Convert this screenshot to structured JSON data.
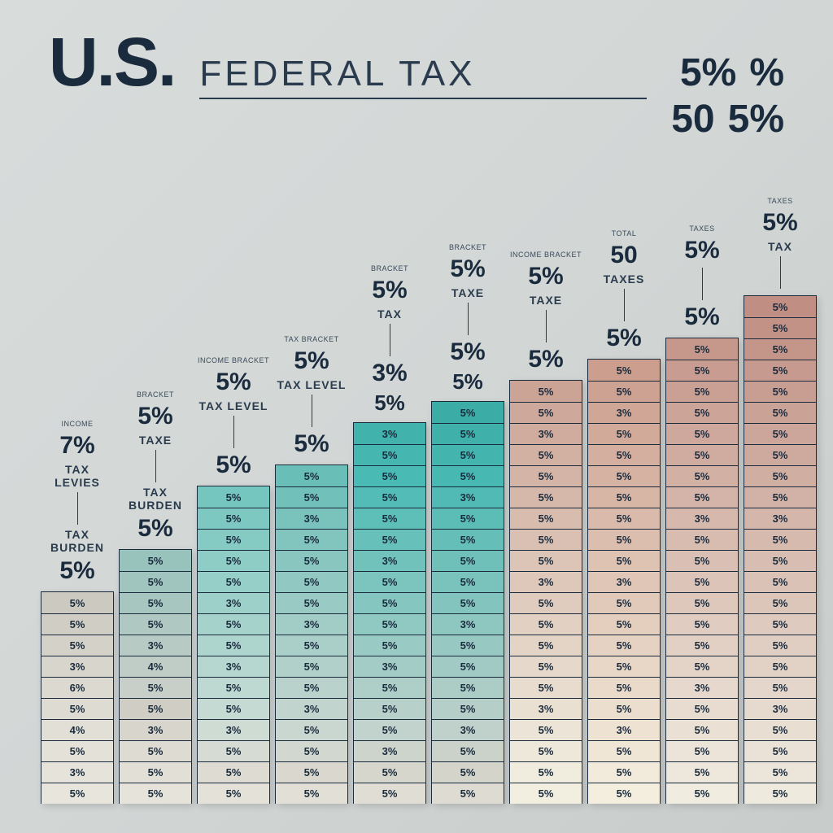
{
  "header": {
    "us": "U.S.",
    "title": "FEDERAL TAX",
    "right1": "5%",
    "right2": "%",
    "right3": "50",
    "right4": "5%"
  },
  "chart": {
    "type": "stacked-bar",
    "background_color": "#d4d8d6",
    "text_color": "#1a2b3d",
    "seg_height": 26,
    "col_gap": 6,
    "columns": [
      {
        "top_tiny": "INCOME",
        "top_pct": "7%",
        "top_sub": "TAX LEVIES",
        "mid_sub": "TAX BURDEN",
        "mid_pct": "5%",
        "segs": 10,
        "colors": [
          "#e8e6dc",
          "#e6e4da",
          "#e4e2d8",
          "#e2e0d6",
          "#dedcd2",
          "#dcdad0",
          "#d8d6cc",
          "#d4d2c8",
          "#d0cec4",
          "#cccac0"
        ],
        "labels": [
          "5%",
          "3%",
          "5%",
          "4%",
          "5%",
          "6%",
          "3%",
          "5%",
          "5%",
          "5%"
        ]
      },
      {
        "top_tiny": "BRACKET",
        "top_pct": "5%",
        "top_sub": "TAXE",
        "mid_sub": "TAX BURDEN",
        "mid_pct": "5%",
        "segs": 12,
        "colors": [
          "#e6e4da",
          "#e2e0d6",
          "#dedcd2",
          "#d8d6cc",
          "#d0cec4",
          "#c8cec8",
          "#c0ccc6",
          "#b8cac4",
          "#b0c8c2",
          "#a8c6c0",
          "#a0c4be",
          "#98c2bc"
        ],
        "labels": [
          "5%",
          "5%",
          "5%",
          "3%",
          "5%",
          "5%",
          "4%",
          "3%",
          "5%",
          "5%",
          "5%",
          "5%"
        ]
      },
      {
        "top_tiny": "INCOME BRACKET",
        "top_pct": "5%",
        "top_sub": "TAX LEVEL",
        "mid_pct": "5%",
        "segs": 15,
        "colors": [
          "#e4e2d8",
          "#dedcd2",
          "#d6dcd4",
          "#cedcd4",
          "#c6dad4",
          "#bed8d2",
          "#b6d6d0",
          "#aed4ce",
          "#a6d2cc",
          "#9ed0ca",
          "#96cec8",
          "#8eccc6",
          "#86cac4",
          "#7ec8c2",
          "#76c6c0"
        ],
        "labels": [
          "5%",
          "5%",
          "5%",
          "3%",
          "5%",
          "5%",
          "3%",
          "5%",
          "5%",
          "3%",
          "5%",
          "5%",
          "5%",
          "5%",
          "5%"
        ]
      },
      {
        "top_tiny": "TAX BRACKET",
        "top_pct": "5%",
        "top_sub": "TAX LEVEL",
        "mid_pct": "5%",
        "segs": 16,
        "colors": [
          "#e2e0d6",
          "#dad8ce",
          "#d2d8d0",
          "#cad6d0",
          "#c2d4ce",
          "#bad2cc",
          "#b2d0ca",
          "#aacec8",
          "#a2ccc6",
          "#9acac4",
          "#92c8c2",
          "#8ac6c0",
          "#82c4be",
          "#7ac2bc",
          "#72c0ba",
          "#6abeb8"
        ],
        "labels": [
          "5%",
          "5%",
          "5%",
          "5%",
          "3%",
          "5%",
          "5%",
          "5%",
          "3%",
          "5%",
          "5%",
          "5%",
          "5%",
          "3%",
          "5%",
          "5%"
        ]
      },
      {
        "top_tiny": "BRACKET",
        "top_pct": "5%",
        "top_sub": "TAX",
        "mid_pct": "3%",
        "mid_pct2": "5%",
        "segs": 18,
        "colors": [
          "#e0ded4",
          "#d6d6cc",
          "#ccd4cc",
          "#c2d2cc",
          "#b8d0ca",
          "#aecec8",
          "#a4ccc6",
          "#9acac4",
          "#90c8c2",
          "#86c6c0",
          "#7cc4be",
          "#72c2bc",
          "#68c0ba",
          "#5ebeb8",
          "#54bcb6",
          "#4abab4",
          "#46b6b0",
          "#42b2ac"
        ],
        "labels": [
          "5%",
          "5%",
          "3%",
          "5%",
          "5%",
          "5%",
          "3%",
          "5%",
          "5%",
          "5%",
          "5%",
          "3%",
          "5%",
          "5%",
          "5%",
          "5%",
          "5%",
          "3%"
        ]
      },
      {
        "top_tiny": "BRACKET",
        "top_pct": "5%",
        "top_sub": "TAXE",
        "mid_pct": "5%",
        "mid_pct2": "5%",
        "segs": 19,
        "colors": [
          "#dedcd2",
          "#d4d4ca",
          "#cad2ca",
          "#c0d0ca",
          "#b6cec8",
          "#acccc6",
          "#a2cac4",
          "#98c8c2",
          "#8ec6c0",
          "#84c4be",
          "#7ac2bc",
          "#70c0ba",
          "#66beb8",
          "#5cbcb6",
          "#52bab4",
          "#48b8b2",
          "#44b4ae",
          "#40b0aa",
          "#3caca6"
        ],
        "labels": [
          "5%",
          "5%",
          "5%",
          "3%",
          "5%",
          "5%",
          "5%",
          "5%",
          "3%",
          "5%",
          "5%",
          "5%",
          "5%",
          "5%",
          "3%",
          "5%",
          "5%",
          "5%",
          "5%"
        ]
      },
      {
        "top_tiny": "INCOME BRACKET",
        "top_pct": "5%",
        "top_sub": "TAXE",
        "mid_pct": "5%",
        "segs": 20,
        "colors": [
          "#f2eee0",
          "#f0ecde",
          "#eee8da",
          "#ece4d6",
          "#eae0d2",
          "#e8dcce",
          "#e6d8ca",
          "#e4d4c6",
          "#e2d0c2",
          "#e0ccbe",
          "#dec8ba",
          "#dcc4b6",
          "#dac0b2",
          "#d8bcae",
          "#d6b8aa",
          "#d4b4a6",
          "#d2b0a2",
          "#d0ac9e",
          "#cea89a",
          "#cca496"
        ],
        "labels": [
          "5%",
          "5%",
          "5%",
          "5%",
          "3%",
          "5%",
          "5%",
          "5%",
          "5%",
          "5%",
          "3%",
          "5%",
          "5%",
          "5%",
          "5%",
          "5%",
          "5%",
          "3%",
          "5%",
          "5%"
        ]
      },
      {
        "top_tiny": "TOTAL",
        "top_pct": "50",
        "top_sub": "TAXES",
        "mid_pct": "5%",
        "segs": 21,
        "colors": [
          "#f4eede",
          "#f2eada",
          "#f0e6d6",
          "#eee2d2",
          "#ecdece",
          "#eadaca",
          "#e8d6c6",
          "#e6d2c2",
          "#e4cebe",
          "#e2caba",
          "#e0c6b6",
          "#dec2b2",
          "#dcbeae",
          "#dabaaa",
          "#d8b6a6",
          "#d6b2a2",
          "#d4ae9e",
          "#d2aa9a",
          "#d0a696",
          "#cea292",
          "#cc9e8e"
        ],
        "labels": [
          "5%",
          "5%",
          "5%",
          "3%",
          "5%",
          "5%",
          "5%",
          "5%",
          "5%",
          "5%",
          "3%",
          "5%",
          "5%",
          "5%",
          "5%",
          "5%",
          "5%",
          "5%",
          "3%",
          "5%",
          "5%"
        ]
      },
      {
        "top_tiny": "TAXES",
        "top_pct": "5%",
        "top_sub": "",
        "mid_pct": "5%",
        "segs": 22,
        "colors": [
          "#f0ece0",
          "#eee8dc",
          "#ece4d8",
          "#eae0d4",
          "#e8dcd0",
          "#e6d8cc",
          "#e4d4c8",
          "#e2d0c4",
          "#e0ccc0",
          "#dec8bc",
          "#dcc4b8",
          "#dac0b4",
          "#d8bcb0",
          "#d6b8ac",
          "#d4b4a8",
          "#d2b0a4",
          "#d0aca0",
          "#cea89c",
          "#cca498",
          "#caa094",
          "#c89c90",
          "#c6988c"
        ],
        "labels": [
          "5%",
          "5%",
          "5%",
          "5%",
          "5%",
          "3%",
          "5%",
          "5%",
          "5%",
          "5%",
          "5%",
          "5%",
          "5%",
          "3%",
          "5%",
          "5%",
          "5%",
          "5%",
          "5%",
          "5%",
          "5%",
          "5%"
        ]
      },
      {
        "top_tiny": "TAXES",
        "top_pct": "5%",
        "top_sub": "TAX",
        "mid_pct": "",
        "segs": 24,
        "colors": [
          "#eeeade",
          "#ece6da",
          "#eae2d6",
          "#e8ded2",
          "#e6dace",
          "#e4d6ca",
          "#e2d2c6",
          "#e0cec2",
          "#decabe",
          "#dcc6ba",
          "#dac2b6",
          "#d8beb2",
          "#d6baae",
          "#d4b6aa",
          "#d2b2a6",
          "#d0aea2",
          "#ceaa9e",
          "#cca69a",
          "#caa296",
          "#c89e92",
          "#c69a8e",
          "#c4968a",
          "#c29286",
          "#c08e82"
        ],
        "labels": [
          "5%",
          "5%",
          "5%",
          "5%",
          "3%",
          "5%",
          "5%",
          "5%",
          "5%",
          "5%",
          "5%",
          "5%",
          "5%",
          "3%",
          "5%",
          "5%",
          "5%",
          "5%",
          "5%",
          "5%",
          "5%",
          "5%",
          "5%",
          "5%"
        ]
      }
    ]
  }
}
